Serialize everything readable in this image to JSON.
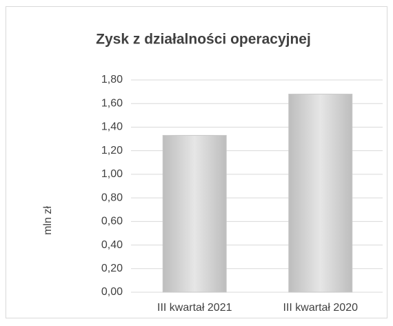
{
  "chart_data": {
    "type": "bar",
    "title": "Zysk z działalności operacyjnej",
    "y_label": "mln zł",
    "categories": [
      "III kwartał 2021",
      "III kwartał 2020"
    ],
    "values": [
      1.33,
      1.68
    ],
    "color": "#e6e6e6",
    "ylim": [
      0,
      1.8
    ],
    "yticks": [
      {
        "value": 0,
        "label": "0,00"
      },
      {
        "value": 0.2,
        "label": "0,20"
      },
      {
        "value": 0.4,
        "label": "0,40"
      },
      {
        "value": 0.6,
        "label": "0,60"
      },
      {
        "value": 0.8,
        "label": "0,80"
      },
      {
        "value": 1.0,
        "label": "1,00"
      },
      {
        "value": 1.2,
        "label": "1,20"
      },
      {
        "value": 1.4,
        "label": "1,40"
      },
      {
        "value": 1.6,
        "label": "1,60"
      },
      {
        "value": 1.8,
        "label": "1,80"
      }
    ],
    "grid": true
  }
}
